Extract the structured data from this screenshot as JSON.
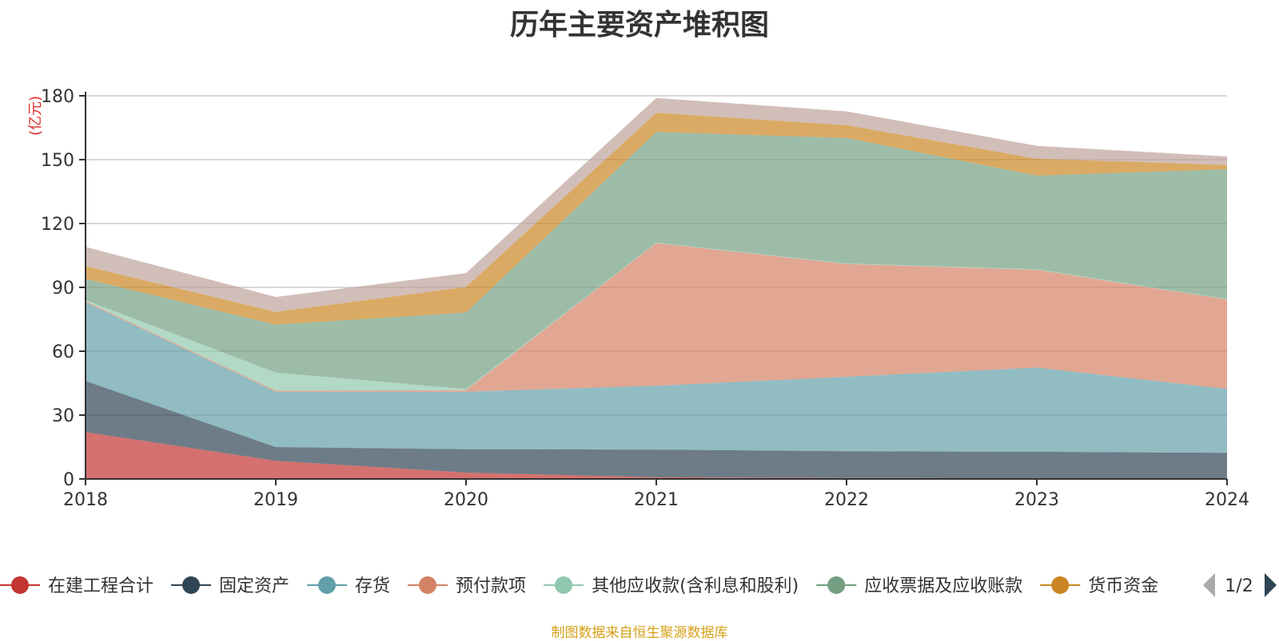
{
  "chart_data": {
    "type": "area",
    "stacked": true,
    "title": "历年主要资产堆积图",
    "unit_label": "(亿元)",
    "x": [
      "2018",
      "2019",
      "2020",
      "2021",
      "2022",
      "2023",
      "2024"
    ],
    "ylim": [
      0,
      180
    ],
    "yticks": [
      0,
      30,
      60,
      90,
      120,
      150,
      180
    ],
    "grid": true,
    "legend_position": "bottom",
    "legend_page": "1/2",
    "series": [
      {
        "name": "在建工程合计",
        "color": "#c23531",
        "values": [
          22,
          8.5,
          3,
          0.8,
          0.5,
          0.3,
          0.3
        ]
      },
      {
        "name": "固定资产",
        "color": "#2f4554",
        "values": [
          24,
          6.5,
          11,
          13,
          12.5,
          12.5,
          12
        ]
      },
      {
        "name": "存货",
        "color": "#61a0a8",
        "values": [
          37,
          26,
          27,
          30,
          35,
          39.5,
          30
        ]
      },
      {
        "name": "预付款项",
        "color": "#d48265",
        "values": [
          0.5,
          0.5,
          0.7,
          67,
          53,
          46,
          42
        ]
      },
      {
        "name": "其他应收款(含利息和股利)",
        "color": "#91c7ae",
        "values": [
          0.5,
          8.5,
          0.5,
          0.2,
          0.2,
          0.2,
          0.2
        ]
      },
      {
        "name": "应收票据及应收账款",
        "color": "#749f83",
        "values": [
          10,
          22.5,
          36,
          52,
          59,
          44,
          61
        ]
      },
      {
        "name": "货币资金",
        "color": "#ca8622",
        "values": [
          6,
          6,
          12,
          9,
          6,
          8,
          2
        ]
      },
      {
        "name": "",
        "color": "#bda29a",
        "values": [
          9,
          7,
          6.5,
          7,
          6.5,
          6,
          4
        ]
      }
    ],
    "source_note": "制图数据来自恒生聚源数据库"
  }
}
